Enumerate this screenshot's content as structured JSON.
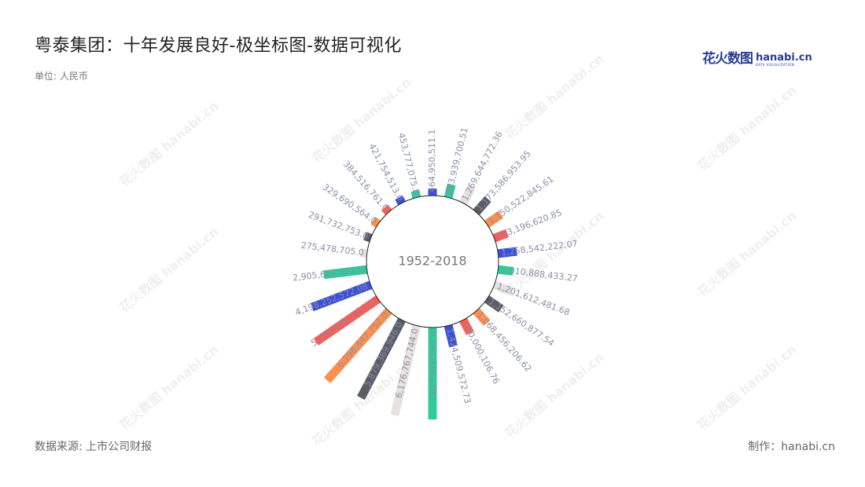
{
  "header": {
    "title": "粤泰集团：十年发展良好-极坐标图-数据可视化",
    "unit": "单位: 人民币"
  },
  "logo": {
    "cn_text": "花火数图",
    "en_text": "hanabi.cn",
    "sub_text": "DATA VISUALIZATION"
  },
  "footer": {
    "source": "数据来源: 上市公司财报",
    "credit": "制作：hanabi.cn"
  },
  "watermark": {
    "text": "花火数图 hanabi.cn"
  },
  "chart_data": {
    "type": "bar",
    "coordinate": "polar",
    "center_label": "1952-2018",
    "colors": [
      "#3b4fd8",
      "#2dcc9a",
      "#e8e1e1",
      "#5a5c66",
      "#ff8f4d",
      "#ff5a52"
    ],
    "values": [
      464950511.1,
      893939700.51,
      1269644772.36,
      1173586953.95,
      1150522845.61,
      933196620.85,
      1258542222.07,
      1010888433.27,
      1201612481.68,
      1152660877.54,
      1068456206.62,
      990000106.76,
      1424509572.73,
      6145934178.1,
      6176767744.0,
      5879369946.0,
      6198847752.0,
      5039886225.01,
      4198252572.08,
      2905689322.0,
      275478705.0,
      291732753.0,
      329690564.0,
      384516761.0,
      421754513.0,
      453777075.8
    ],
    "labels": [
      "464,950,511.1",
      "893,939,700.51",
      "1,269,644,772.36",
      "1,173,586,953.95",
      "1,150,522,845.61",
      "933,196,620.85",
      "1,258,542,222.07",
      "1,010,888,433.27",
      "1,201,612,481.68",
      "1,152,660,877.54",
      "1,068,456,206.62",
      "990,000,106.76",
      "1,424,509,572.73",
      "6,145,934,178.1",
      "6,176,767,744.0",
      "5,879,369,946.0",
      "6,198,847,752.0",
      "5,039,886,225.01",
      "4,198,252,572.08",
      "2,905,689,322.0",
      "275,478,705.0",
      "291,732,753.0",
      "329,690,564.0",
      "384,516,761.0",
      "421,754,513.0",
      "453,777,075.8"
    ]
  }
}
